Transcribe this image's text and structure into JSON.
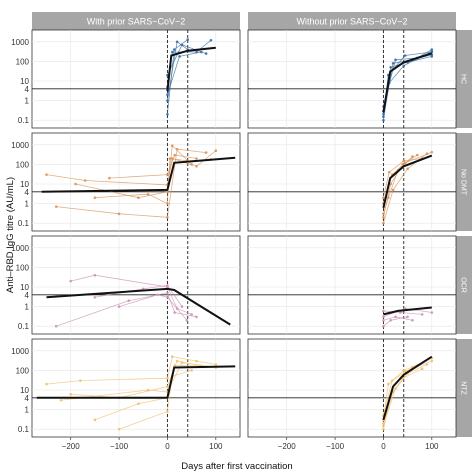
{
  "chart_data": {
    "type": "line",
    "xlabel": "Days after first vaccination",
    "ylabel": "Anti–RBD IgG titre (AU/mL)",
    "y_scale": "log10",
    "x_ticks": [
      -200,
      -100,
      0,
      100
    ],
    "y_ticks": [
      0.1,
      1,
      4,
      10,
      100,
      1000
    ],
    "y_tick_labels": [
      "0.1",
      "1",
      "4",
      "10",
      "100",
      "1000"
    ],
    "xlim": [
      -280,
      150
    ],
    "ylim": [
      0.04,
      4000
    ],
    "threshold": 4,
    "vertical_lines": [
      0,
      42
    ],
    "columns": [
      "With prior SARS−CoV−2",
      "Without prior SARS−CoV−2"
    ],
    "rows": [
      {
        "label": "HC",
        "color": "#3a6ea5",
        "mean": [
          [
            [
              0,
              3
            ],
            [
              8,
              200
            ],
            [
              42,
              350
            ],
            [
              100,
              500
            ]
          ],
          [
            [
              0,
              0.25
            ],
            [
              14,
              30
            ],
            [
              42,
              90
            ],
            [
              100,
              260
            ]
          ]
        ],
        "individual": [
          [
            [
              [
                0,
                0.2
              ],
              [
                14,
                400
              ],
              [
                42,
                1300
              ]
            ],
            [
              [
                0,
                1
              ],
              [
                20,
                1000
              ],
              [
                42,
                400
              ]
            ],
            [
              [
                0,
                5
              ],
              [
                10,
                300
              ],
              [
                60,
                300
              ],
              [
                90,
                1200
              ]
            ],
            [
              [
                0,
                20
              ],
              [
                30,
                700
              ],
              [
                80,
                250
              ]
            ],
            [
              [
                0,
                2
              ],
              [
                25,
                180
              ],
              [
                70,
                300
              ]
            ]
          ],
          [
            [
              [
                0,
                0.2
              ],
              [
                10,
                20
              ],
              [
                45,
                200
              ],
              [
                100,
                300
              ]
            ],
            [
              [
                0,
                0.15
              ],
              [
                20,
                80
              ],
              [
                60,
                120
              ],
              [
                100,
                220
              ]
            ],
            [
              [
                0,
                0.3
              ],
              [
                15,
                50
              ],
              [
                50,
                90
              ],
              [
                100,
                180
              ]
            ],
            [
              [
                0,
                0.1
              ],
              [
                12,
                8
              ],
              [
                42,
                60
              ],
              [
                100,
                320
              ]
            ],
            [
              [
                0,
                0.5
              ],
              [
                25,
                120
              ],
              [
                70,
                150
              ],
              [
                100,
                400
              ]
            ]
          ]
        ]
      },
      {
        "label": "No DMT",
        "color": "#d8945b",
        "mean": [
          [
            [
              -260,
              4
            ],
            [
              0,
              5
            ],
            [
              14,
              120
            ],
            [
              140,
              220
            ]
          ],
          [
            [
              0,
              0.6
            ],
            [
              14,
              20
            ],
            [
              42,
              80
            ],
            [
              100,
              280
            ]
          ]
        ],
        "individual": [
          [
            [
              [
                -250,
                30
              ],
              [
                -170,
                15
              ],
              [
                0,
                9
              ],
              [
                10,
                200
              ],
              [
                60,
                80
              ],
              [
                100,
                500
              ]
            ],
            [
              [
                -190,
                10
              ],
              [
                -60,
                2
              ],
              [
                0,
                4
              ],
              [
                10,
                900
              ],
              [
                50,
                100
              ]
            ],
            [
              [
                -150,
                2
              ],
              [
                -40,
                3
              ],
              [
                0,
                1
              ],
              [
                5,
                200
              ],
              [
                40,
                150
              ],
              [
                90,
                180
              ]
            ],
            [
              [
                -230,
                0.7
              ],
              [
                -100,
                0.3
              ],
              [
                0,
                0.2
              ],
              [
                20,
                600
              ],
              [
                80,
                400
              ]
            ],
            [
              [
                -120,
                20
              ],
              [
                0,
                30
              ],
              [
                15,
                300
              ],
              [
                60,
                200
              ]
            ]
          ],
          [
            [
              [
                0,
                0.3
              ],
              [
                10,
                2
              ],
              [
                30,
                50
              ],
              [
                60,
                250
              ]
            ],
            [
              [
                0,
                0.2
              ],
              [
                15,
                10
              ],
              [
                40,
                100
              ],
              [
                70,
                300
              ]
            ],
            [
              [
                0,
                2
              ],
              [
                12,
                40
              ],
              [
                42,
                150
              ],
              [
                80,
                200
              ]
            ],
            [
              [
                0,
                0.1
              ],
              [
                20,
                5
              ],
              [
                50,
                60
              ],
              [
                90,
                350
              ]
            ],
            [
              [
                0,
                1
              ],
              [
                18,
                30
              ],
              [
                45,
                120
              ],
              [
                100,
                420
              ]
            ]
          ]
        ]
      },
      {
        "label": "OCR",
        "color": "#cc93b8",
        "mean": [
          [
            [
              -250,
              3
            ],
            [
              0,
              8
            ],
            [
              14,
              7
            ],
            [
              130,
              0.12
            ]
          ],
          [
            [
              0,
              0.4
            ],
            [
              30,
              0.6
            ],
            [
              100,
              0.9
            ]
          ]
        ],
        "individual": [
          [
            [
              [
                -200,
                20
              ],
              [
                -150,
                40
              ],
              [
                0,
                10
              ],
              [
                20,
                0.8
              ],
              [
                50,
                0.4
              ]
            ],
            [
              [
                -230,
                0.1
              ],
              [
                -80,
                2
              ],
              [
                0,
                5
              ],
              [
                15,
                0.5
              ],
              [
                60,
                0.3
              ]
            ],
            [
              [
                -150,
                3
              ],
              [
                -50,
                8
              ],
              [
                0,
                12
              ],
              [
                30,
                1
              ]
            ],
            [
              [
                -100,
                1
              ],
              [
                -20,
                4
              ],
              [
                0,
                3
              ],
              [
                40,
                0.2
              ]
            ]
          ],
          [
            [
              [
                0,
                0.2
              ],
              [
                25,
                0.3
              ],
              [
                60,
                0.2
              ]
            ],
            [
              [
                0,
                0.6
              ],
              [
                35,
                0.5
              ],
              [
                80,
                0.4
              ]
            ],
            [
              [
                0,
                0.1
              ],
              [
                15,
                0.2
              ],
              [
                50,
                0.3
              ]
            ],
            [
              [
                0,
                0.3
              ],
              [
                45,
                0.8
              ],
              [
                100,
                0.5
              ]
            ]
          ]
        ]
      },
      {
        "label": "NTZ",
        "color": "#f0c070",
        "mean": [
          [
            [
              -270,
              4
            ],
            [
              0,
              4
            ],
            [
              14,
              140
            ],
            [
              140,
              160
            ]
          ],
          [
            [
              0,
              0.3
            ],
            [
              20,
              15
            ],
            [
              42,
              60
            ],
            [
              100,
              500
            ]
          ]
        ],
        "individual": [
          [
            [
              [
                -250,
                20
              ],
              [
                -180,
                30
              ],
              [
                0,
                40
              ],
              [
                10,
                500
              ],
              [
                60,
                300
              ],
              [
                100,
                200
              ]
            ],
            [
              [
                -200,
                6
              ],
              [
                -100,
                4
              ],
              [
                0,
                15
              ],
              [
                20,
                300
              ],
              [
                80,
                150
              ]
            ],
            [
              [
                -150,
                0.3
              ],
              [
                -60,
                2
              ],
              [
                0,
                4
              ],
              [
                15,
                180
              ],
              [
                70,
                170
              ]
            ],
            [
              [
                -220,
                3
              ],
              [
                -40,
                10
              ],
              [
                0,
                8
              ],
              [
                30,
                250
              ],
              [
                100,
                140
              ]
            ],
            [
              [
                -100,
                0.1
              ],
              [
                0,
                0.8
              ],
              [
                10,
                50
              ],
              [
                50,
                100
              ]
            ]
          ],
          [
            [
              [
                0,
                0.2
              ],
              [
                20,
                8
              ],
              [
                50,
                70
              ],
              [
                90,
                200
              ]
            ],
            [
              [
                0,
                0.1
              ],
              [
                15,
                5
              ],
              [
                40,
                40
              ],
              [
                80,
                120
              ]
            ],
            [
              [
                0,
                0.3
              ],
              [
                10,
                20
              ],
              [
                45,
                90
              ],
              [
                100,
                300
              ]
            ],
            [
              [
                0,
                0.15
              ],
              [
                25,
                12
              ],
              [
                60,
                150
              ],
              [
                100,
                420
              ]
            ],
            [
              [
                0,
                0.5
              ],
              [
                18,
                30
              ],
              [
                42,
                100
              ],
              [
                70,
                180
              ]
            ]
          ]
        ]
      }
    ]
  }
}
